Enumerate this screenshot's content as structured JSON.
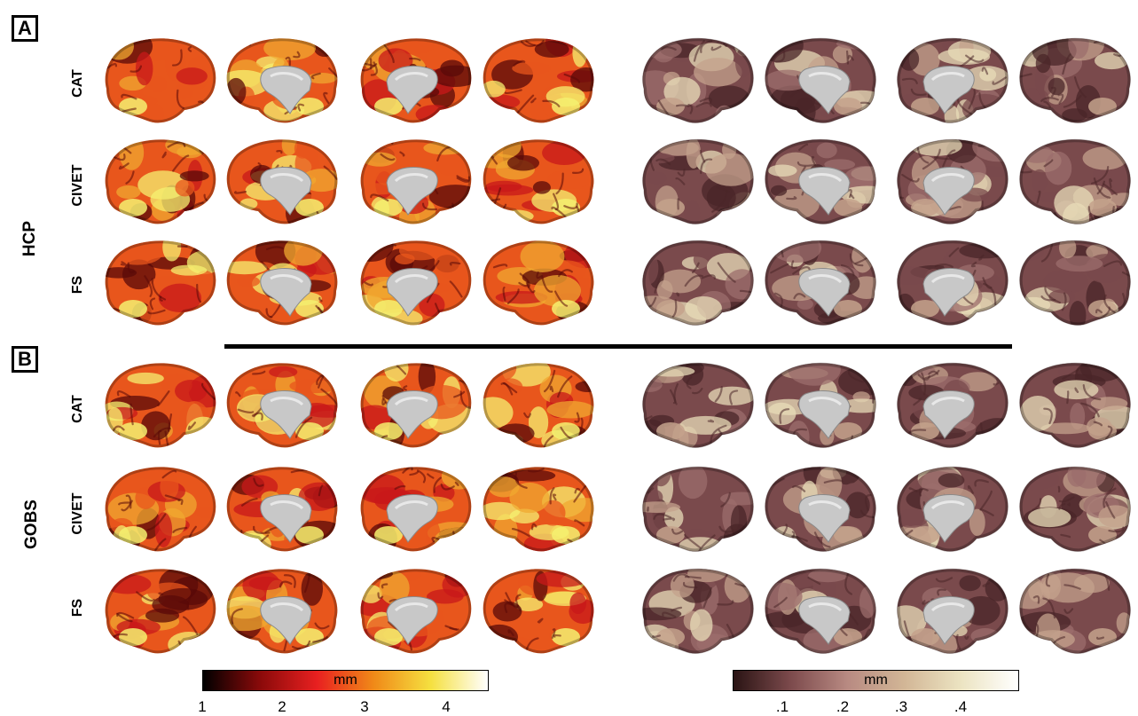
{
  "panels": [
    {
      "letter": "A",
      "dataset": "HCP",
      "rows": [
        "CAT",
        "CIVET",
        "FS"
      ]
    },
    {
      "letter": "B",
      "dataset": "GOBS",
      "rows": [
        "CAT",
        "CIVET",
        "FS"
      ]
    }
  ],
  "views": [
    "lateral-left",
    "medial-left",
    "medial-right",
    "lateral-right"
  ],
  "maps": [
    {
      "measure": "mean-thickness",
      "palette": [
        "#5a0a08",
        "#c8181a",
        "#e8561c",
        "#f0a830",
        "#f5f070"
      ]
    },
    {
      "measure": "thickness-sd",
      "palette": [
        "#4a2628",
        "#7a4a4c",
        "#9c6e6c",
        "#c4a28c",
        "#e8dcb8"
      ]
    }
  ],
  "colorbars": [
    {
      "title": "mm",
      "ticks": [
        "1",
        "2",
        "3",
        "4"
      ],
      "gradient": [
        "#000000",
        "#8a0a0a",
        "#e82020",
        "#f08a18",
        "#f5e040",
        "#ffffff"
      ]
    },
    {
      "title": "mm",
      "ticks": [
        ".1",
        ".2",
        ".3",
        ".4"
      ],
      "gradient": [
        "#2a1414",
        "#7c4a4c",
        "#b88a82",
        "#d2b696",
        "#ece4c2",
        "#ffffff"
      ]
    }
  ]
}
